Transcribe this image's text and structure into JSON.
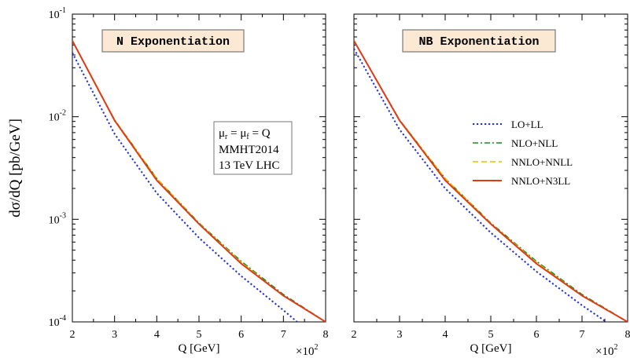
{
  "figure": {
    "ylabel": "dσ/dQ [pb/GeV]",
    "xlabel": "Q [GeV]",
    "x_multiplier": "×10",
    "x_multiplier_exp": "2",
    "info_mu": "μ",
    "info_mu_r": "r",
    "info_eq": " = ",
    "info_mu_f": "f",
    "info_eq2": " = Q",
    "info_line2": "MMHT2014",
    "info_line3": "13 TeV LHC",
    "tick_base": "10",
    "colors": {
      "LO+LL": "#1f2fd6",
      "NLO+NLL": "#1b8a1b",
      "NNLO+NNLL": "#e0c000",
      "NNLO+N3LL": "#e23a16"
    }
  },
  "chart_data": [
    {
      "type": "line",
      "title": "N Exponentiation",
      "xlabel": "Q [GeV]",
      "ylabel": "dσ/dQ [pb/GeV]",
      "xlim": [
        2,
        8
      ],
      "ylim": [
        0.0001,
        0.1
      ],
      "y_scale": "log",
      "x_ticks": [
        "2",
        "3",
        "4",
        "5",
        "6",
        "7",
        "8"
      ],
      "y_ticks": [
        "-4",
        "-3",
        "-2",
        "-1"
      ],
      "x": [
        2,
        3,
        4,
        5,
        6,
        7,
        8
      ],
      "series": [
        {
          "name": "LO+LL",
          "style": "dotted",
          "values": [
            0.042,
            0.0068,
            0.0018,
            0.00066,
            0.00028,
            0.00013,
            5.8e-05
          ]
        },
        {
          "name": "NLO+NLL",
          "style": "dashdot",
          "values": [
            0.055,
            0.0093,
            0.0025,
            0.00092,
            0.00039,
            0.000185,
            0.0001
          ]
        },
        {
          "name": "NNLO+NNLL",
          "style": "dashed",
          "values": [
            0.055,
            0.0093,
            0.0025,
            0.00091,
            0.00038,
            0.00018,
            0.0001
          ]
        },
        {
          "name": "NNLO+N3LL",
          "style": "solid",
          "values": [
            0.055,
            0.0092,
            0.0024,
            0.0009,
            0.00037,
            0.00018,
            0.0001
          ]
        }
      ]
    },
    {
      "type": "line",
      "title": "NB Exponentiation",
      "xlabel": "Q [GeV]",
      "ylabel": "",
      "xlim": [
        2,
        8
      ],
      "ylim": [
        0.0001,
        0.1
      ],
      "y_scale": "log",
      "legend": "right-middle",
      "x_ticks": [
        "2",
        "3",
        "4",
        "5",
        "6",
        "7",
        "8"
      ],
      "x": [
        2,
        3,
        4,
        5,
        6,
        7,
        8
      ],
      "series": [
        {
          "name": "LO+LL",
          "style": "dotted",
          "values": [
            0.046,
            0.0075,
            0.002,
            0.00074,
            0.00031,
            0.000145,
            7.2e-05
          ]
        },
        {
          "name": "NLO+NLL",
          "style": "dashdot",
          "values": [
            0.055,
            0.0093,
            0.0025,
            0.00092,
            0.00039,
            0.000185,
            0.0001
          ]
        },
        {
          "name": "NNLO+NNLL",
          "style": "dashed",
          "values": [
            0.055,
            0.0093,
            0.0025,
            0.00091,
            0.00038,
            0.00018,
            0.0001
          ]
        },
        {
          "name": "NNLO+N3LL",
          "style": "solid",
          "values": [
            0.055,
            0.0092,
            0.0024,
            0.0009,
            0.00037,
            0.00018,
            0.0001
          ]
        }
      ]
    }
  ]
}
